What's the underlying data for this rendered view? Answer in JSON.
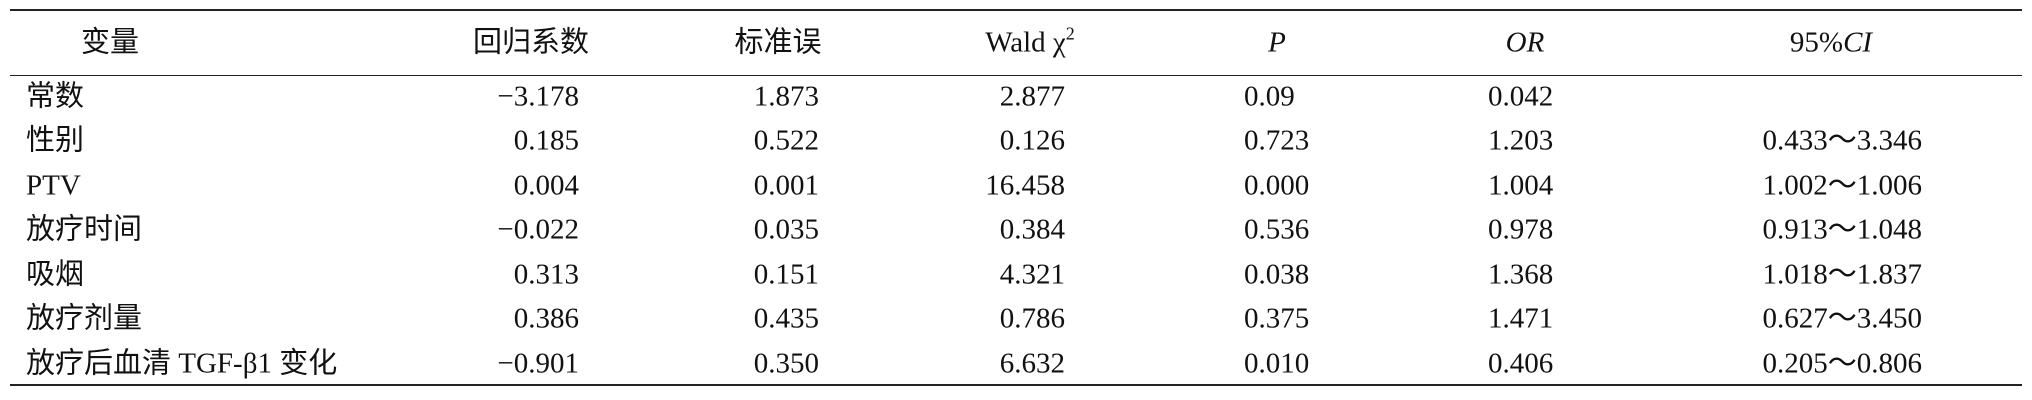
{
  "table": {
    "header": [
      "变量",
      "回归系数",
      "标准误",
      {
        "text": "Wald χ",
        "sup": "2"
      },
      "P",
      "OR",
      {
        "text": "95%",
        "em": "CI"
      }
    ],
    "rows": [
      [
        "常数",
        "−3.178",
        "1.873",
        "2.877",
        "0.09",
        "0.042",
        null
      ],
      [
        "性别",
        "0.185",
        "0.522",
        "0.126",
        "0.723",
        "1.203",
        "0.433～3.346"
      ],
      [
        "PTV",
        "0.004",
        "0.001",
        "16.458",
        "0.000",
        "1.004",
        "1.002～1.006"
      ],
      [
        "放疗时间",
        "−0.022",
        "0.035",
        "0.384",
        "0.536",
        "0.978",
        "0.913～1.048"
      ],
      [
        "吸烟",
        "0.313",
        "0.151",
        "4.321",
        "0.038",
        "1.368",
        "1.018～1.837"
      ],
      [
        "放疗剂量",
        "0.386",
        "0.435",
        "0.786",
        "0.375",
        "1.471",
        "0.627～3.450"
      ],
      [
        "放疗后血清 TGF-β1 变化",
        "−0.901",
        "0.350",
        "6.632",
        "0.010",
        "0.406",
        "0.205～0.806"
      ]
    ]
  }
}
